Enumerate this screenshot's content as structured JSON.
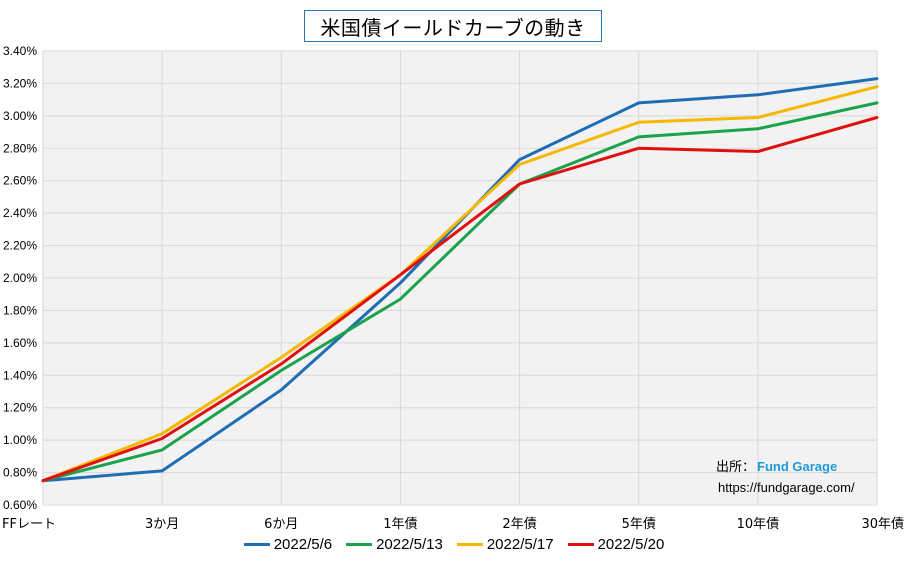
{
  "title": "米国債イールドカーブの動き",
  "source": {
    "label": "出所：",
    "brand": "Fund Garage",
    "url": "https://fundgarage.com/"
  },
  "chart_data": {
    "type": "line",
    "title": "米国債イールドカーブの動き",
    "categories": [
      "FFレート",
      "3か月",
      "6か月",
      "1年債",
      "2年債",
      "5年債",
      "10年債",
      "30年債"
    ],
    "ylim": [
      0.6,
      3.4
    ],
    "ytick_step": 0.2,
    "y_unit": "%",
    "grid": true,
    "legend_position": "bottom",
    "series": [
      {
        "name": "2022/5/6",
        "color": "#1f6eb5",
        "values": [
          0.75,
          0.81,
          1.31,
          1.97,
          2.73,
          3.08,
          3.13,
          3.23
        ]
      },
      {
        "name": "2022/5/13",
        "color": "#1aa34a",
        "values": [
          0.75,
          0.94,
          1.43,
          1.87,
          2.58,
          2.87,
          2.92,
          3.08
        ]
      },
      {
        "name": "2022/5/17",
        "color": "#f5b800",
        "values": [
          0.75,
          1.04,
          1.51,
          2.02,
          2.7,
          2.96,
          2.99,
          3.18
        ]
      },
      {
        "name": "2022/5/20",
        "color": "#e01010",
        "values": [
          0.75,
          1.01,
          1.47,
          2.02,
          2.58,
          2.8,
          2.78,
          2.99
        ]
      }
    ]
  }
}
